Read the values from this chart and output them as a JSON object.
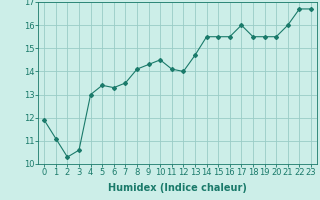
{
  "x": [
    0,
    1,
    2,
    3,
    4,
    5,
    6,
    7,
    8,
    9,
    10,
    11,
    12,
    13,
    14,
    15,
    16,
    17,
    18,
    19,
    20,
    21,
    22,
    23
  ],
  "y": [
    11.9,
    11.1,
    10.3,
    10.6,
    13.0,
    13.4,
    13.3,
    13.5,
    14.1,
    14.3,
    14.5,
    14.1,
    14.0,
    14.7,
    15.5,
    15.5,
    15.5,
    16.0,
    15.5,
    15.5,
    15.5,
    16.0,
    16.7,
    16.7
  ],
  "line_color": "#1a7a6a",
  "marker": "D",
  "marker_size": 2,
  "bg_color": "#cceee8",
  "grid_color": "#99ccc6",
  "xlabel": "Humidex (Indice chaleur)",
  "xlabel_fontsize": 7,
  "xlim": [
    -0.5,
    23.5
  ],
  "ylim": [
    10,
    17
  ],
  "yticks": [
    10,
    11,
    12,
    13,
    14,
    15,
    16,
    17
  ],
  "xticks": [
    0,
    1,
    2,
    3,
    4,
    5,
    6,
    7,
    8,
    9,
    10,
    11,
    12,
    13,
    14,
    15,
    16,
    17,
    18,
    19,
    20,
    21,
    22,
    23
  ],
  "tick_fontsize": 6
}
